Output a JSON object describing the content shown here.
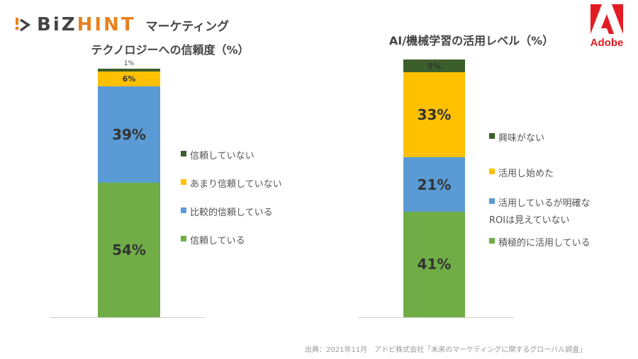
{
  "logo": {
    "brand_a": "BiZ",
    "brand_b": "HINT",
    "section": "マーケティング"
  },
  "adobe": {
    "label": "Adobe"
  },
  "colors": {
    "dark_green": "#3b5e2b",
    "yellow": "#ffc000",
    "blue": "#5b9bd5",
    "green": "#70ad47"
  },
  "chart_data": [
    {
      "type": "bar",
      "stacked": true,
      "title": "テクノロジーへの信頼度（%）",
      "series": [
        {
          "name": "信頼している",
          "value": 54,
          "label": "54%",
          "color": "#70ad47"
        },
        {
          "name": "比較的信頼している",
          "value": 39,
          "label": "39%",
          "color": "#5b9bd5"
        },
        {
          "name": "あまり信頼していない",
          "value": 6,
          "label": "6%",
          "color": "#ffc000"
        },
        {
          "name": "信頼していない",
          "value": 1,
          "label": "1%",
          "color": "#3b5e2b"
        }
      ],
      "legend": "right"
    },
    {
      "type": "bar",
      "stacked": true,
      "title": "AI/機械学習の活用レベル（%）",
      "series": [
        {
          "name": "積極的に活用している",
          "value": 41,
          "label": "41%",
          "color": "#70ad47"
        },
        {
          "name": "活用しているが明確なROIは見えていない",
          "name_lines": [
            "活用しているが明確な",
            "ROIは見えていない"
          ],
          "value": 21,
          "label": "21%",
          "color": "#5b9bd5"
        },
        {
          "name": "活用し始めた",
          "value": 33,
          "label": "33%",
          "color": "#ffc000"
        },
        {
          "name": "興味がない",
          "value": 5,
          "label": "5%",
          "color": "#3b5e2b"
        }
      ],
      "legend": "right"
    }
  ],
  "source": "出典：2021年11月　アドビ株式会社「未来のマーケティングに関するグローバル調査」"
}
